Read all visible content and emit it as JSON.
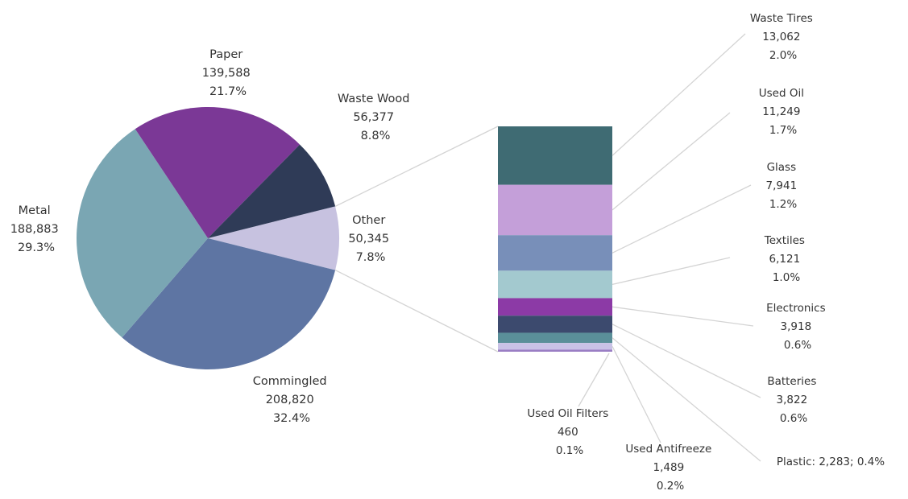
{
  "chart_data": {
    "type": "pie",
    "slices": [
      {
        "label": "Other",
        "value": 50345,
        "value_text": "50,345",
        "percent_text": "7.8%",
        "color": "#c7c2e0"
      },
      {
        "label": "Commingled",
        "value": 208820,
        "value_text": "208,820",
        "percent_text": "32.4%",
        "color": "#5e75a3"
      },
      {
        "label": "Metal",
        "value": 188883,
        "value_text": "188,883",
        "percent_text": "29.3%",
        "color": "#7aa6b3"
      },
      {
        "label": "Paper",
        "value": 139588,
        "value_text": "139,588",
        "percent_text": "21.7%",
        "color": "#7b3896"
      },
      {
        "label": "Waste Wood",
        "value": 56377,
        "value_text": "56,377",
        "percent_text": "8.8%",
        "color": "#2f3b57"
      }
    ],
    "breakdown": {
      "of": "Other",
      "segments": [
        {
          "label": "Waste Tires",
          "value": 13062,
          "value_text": "13,062",
          "percent_text": "2.0%",
          "color": "#3f6b73"
        },
        {
          "label": "Used Oil",
          "value": 11249,
          "value_text": "11,249",
          "percent_text": "1.7%",
          "color": "#c49fd9"
        },
        {
          "label": "Glass",
          "value": 7941,
          "value_text": "7,941",
          "percent_text": "1.2%",
          "color": "#788fb9"
        },
        {
          "label": "Textiles",
          "value": 6121,
          "value_text": "6,121",
          "percent_text": "1.0%",
          "color": "#a3c9cf"
        },
        {
          "label": "Electronics",
          "value": 3918,
          "value_text": "3,918",
          "percent_text": "0.6%",
          "color": "#8c3aa6"
        },
        {
          "label": "Batteries",
          "value": 3822,
          "value_text": "3,822",
          "percent_text": "0.6%",
          "color": "#3c4a6e"
        },
        {
          "label": "Plastic",
          "value": 2283,
          "inline_text": "Plastic:  2,283; 0.4%",
          "color": "#5a8f99"
        },
        {
          "label": "Used Antifreeze",
          "value": 1489,
          "value_text": "1,489",
          "percent_text": "0.2%",
          "color": "#c9c2e6"
        },
        {
          "label": "Used Oil Filters",
          "value": 460,
          "value_text": "460",
          "percent_text": "0.1%",
          "color": "#9a7ec4"
        }
      ]
    }
  }
}
